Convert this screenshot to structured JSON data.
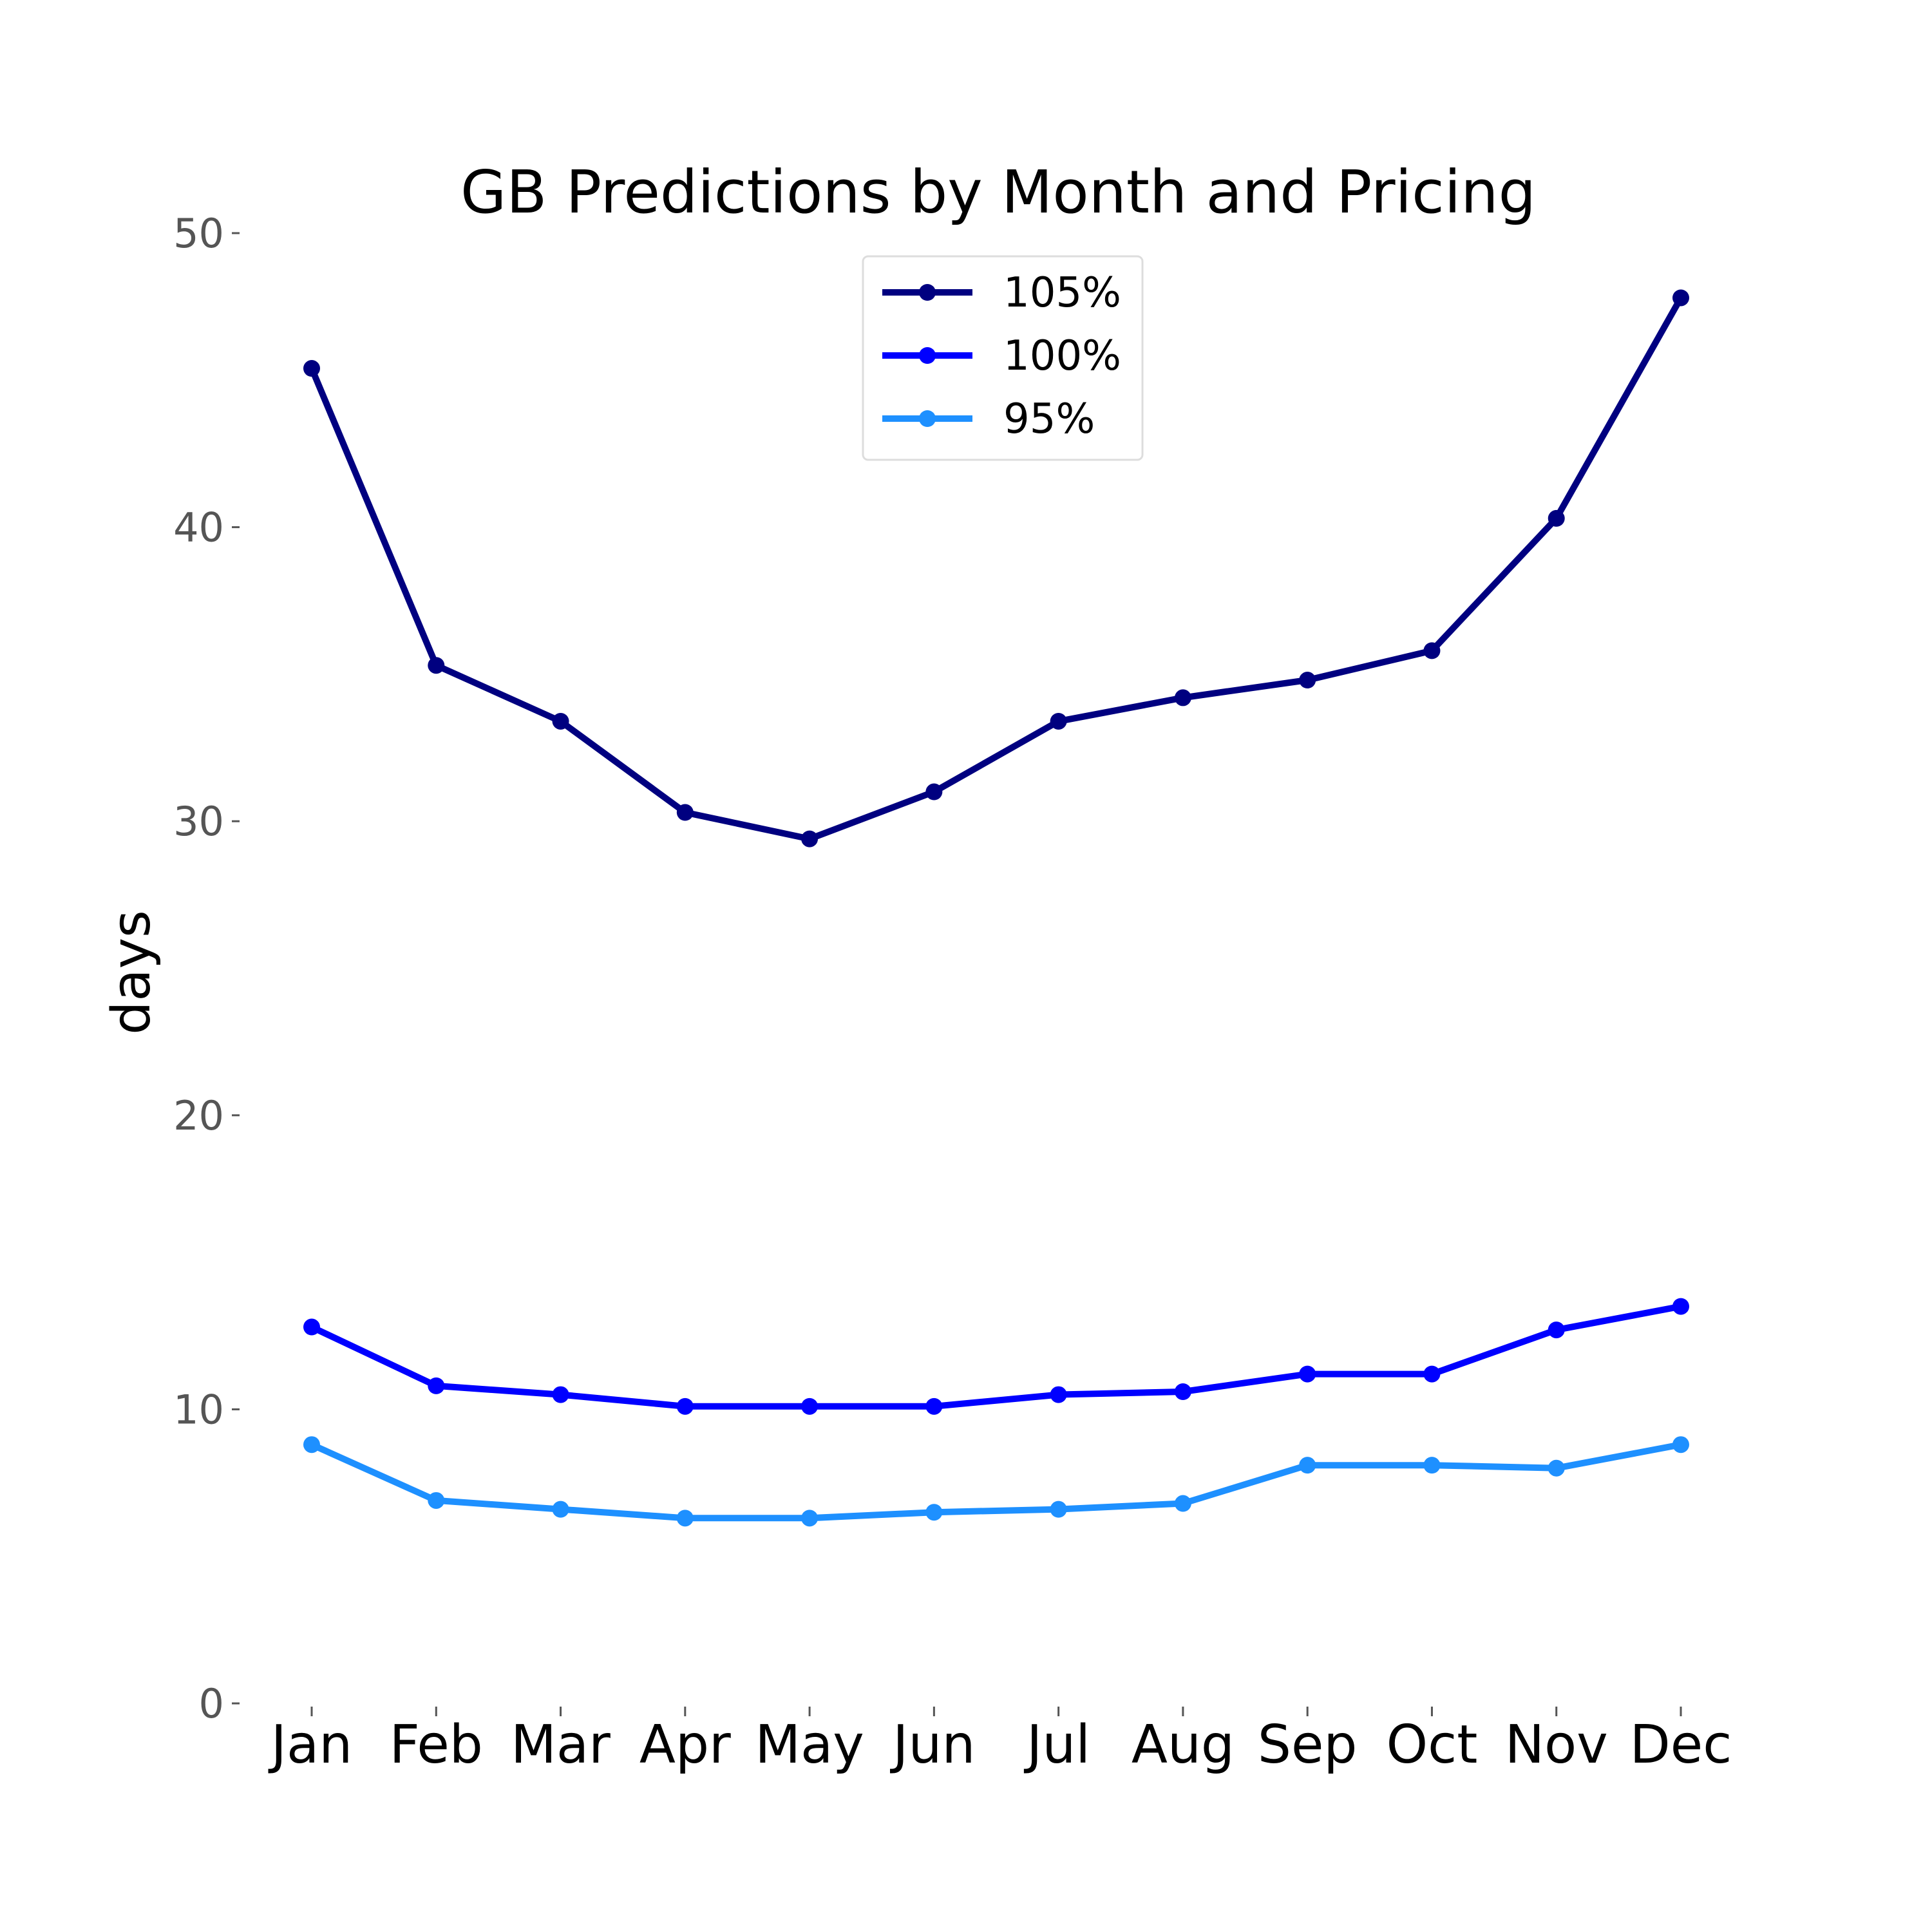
{
  "chart_data": {
    "type": "line",
    "title": "GB Predictions by Month and Pricing",
    "xlabel": "",
    "ylabel": "days",
    "categories": [
      "Jan",
      "Feb",
      "Mar",
      "Apr",
      "May",
      "Jun",
      "Jul",
      "Aug",
      "Sep",
      "Oct",
      "Nov",
      "Dec"
    ],
    "ylim": [
      0,
      50
    ],
    "yticks": [
      "0",
      "10",
      "20",
      "30",
      "40",
      "50"
    ],
    "grid": false,
    "legend_position": "top-center",
    "series": [
      {
        "name": "105%",
        "color": "#000080",
        "values": [
          45.4,
          35.3,
          33.4,
          30.3,
          29.4,
          31.0,
          33.4,
          34.2,
          34.8,
          35.8,
          40.3,
          47.8
        ]
      },
      {
        "name": "100%",
        "color": "#0000ff",
        "values": [
          12.8,
          10.8,
          10.5,
          10.1,
          10.1,
          10.1,
          10.5,
          10.6,
          11.2,
          11.2,
          12.7,
          13.5
        ]
      },
      {
        "name": "95%",
        "color": "#1e90ff",
        "values": [
          8.8,
          6.9,
          6.6,
          6.3,
          6.3,
          6.5,
          6.6,
          6.8,
          8.1,
          8.1,
          8.0,
          8.8
        ]
      }
    ]
  }
}
